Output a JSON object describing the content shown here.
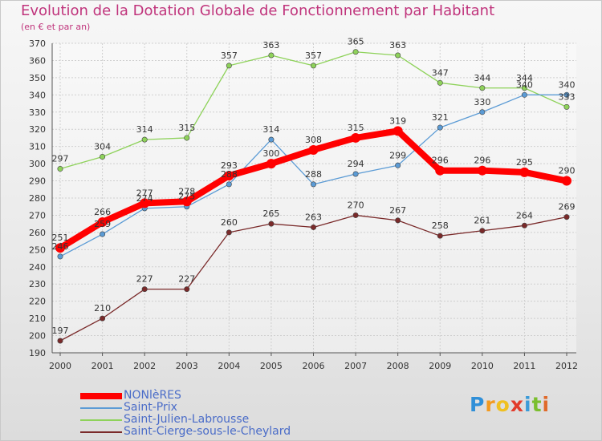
{
  "chart_data": {
    "type": "line",
    "title": "Evolution de la Dotation Globale de Fonctionnement par Habitant",
    "subtitle": "(en € et par an)",
    "xlabel": "",
    "ylabel": "",
    "ylim": [
      190,
      370
    ],
    "y_ticks": [
      190,
      200,
      210,
      220,
      230,
      240,
      250,
      260,
      270,
      280,
      290,
      300,
      310,
      320,
      330,
      340,
      350,
      360,
      370
    ],
    "categories": [
      "2000",
      "2001",
      "2002",
      "2003",
      "2004",
      "2005",
      "2006",
      "2007",
      "2008",
      "2009",
      "2010",
      "2011",
      "2012"
    ],
    "grid": true,
    "legend_position": "bottom-left",
    "series": [
      {
        "name": "NONlèRES",
        "color": "#ff0000",
        "legend_color": "#4a6cc8",
        "values": [
          251,
          266,
          277,
          278,
          293,
          300,
          308,
          315,
          319,
          296,
          296,
          295,
          290
        ],
        "labels": [
          "251",
          "266",
          "277",
          "278",
          "293",
          "300",
          "308",
          "315",
          "319",
          "296",
          "296",
          "295",
          "290"
        ]
      },
      {
        "name": "Saint-Prix",
        "color": "#5b9bd5",
        "legend_color": "#4a6cc8",
        "values": [
          246,
          259,
          274,
          275,
          288,
          314,
          288,
          294,
          299,
          321,
          330,
          340,
          340
        ],
        "labels": [
          "246",
          "259",
          "274",
          "275",
          "288",
          "314",
          "288",
          "294",
          "299",
          "321",
          "330",
          "340",
          "340"
        ]
      },
      {
        "name": "Saint-Julien-Labrousse",
        "color": "#8ed25a",
        "legend_color": "#4a6cc8",
        "values": [
          297,
          304,
          314,
          315,
          357,
          363,
          357,
          365,
          363,
          347,
          344,
          344,
          333
        ],
        "labels": [
          "297",
          "304",
          "314",
          "315",
          "357",
          "363",
          "357",
          "365",
          "363",
          "347",
          "344",
          "344",
          "333"
        ]
      },
      {
        "name": "Saint-Cierge-sous-le-Cheylard",
        "color": "#7a2a2a",
        "legend_color": "#4a6cc8",
        "values": [
          197,
          210,
          227,
          227,
          260,
          265,
          263,
          270,
          267,
          258,
          261,
          264,
          269
        ],
        "labels": [
          "197",
          "210",
          "227",
          "227",
          "260",
          "265",
          "263",
          "270",
          "267",
          "258",
          "261",
          "264",
          "269"
        ]
      }
    ]
  },
  "logo": {
    "letters": [
      "P",
      "r",
      "o",
      "x",
      "i",
      "t",
      "i"
    ],
    "colors": [
      "#2f8fd8",
      "#f39a1f",
      "#f0c020",
      "#e23c2c",
      "#3b9bd8",
      "#7bbf2e",
      "#e06a2a"
    ]
  }
}
